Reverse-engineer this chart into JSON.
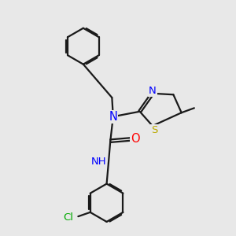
{
  "bg_color": "#e8e8e8",
  "bond_color": "#1a1a1a",
  "bond_width": 1.6,
  "atom_colors": {
    "N": "#0000ff",
    "O": "#ff0000",
    "S": "#bbaa00",
    "Cl": "#00aa00",
    "C": "#1a1a1a",
    "H": "#1a1a1a"
  },
  "font_size": 9.5
}
